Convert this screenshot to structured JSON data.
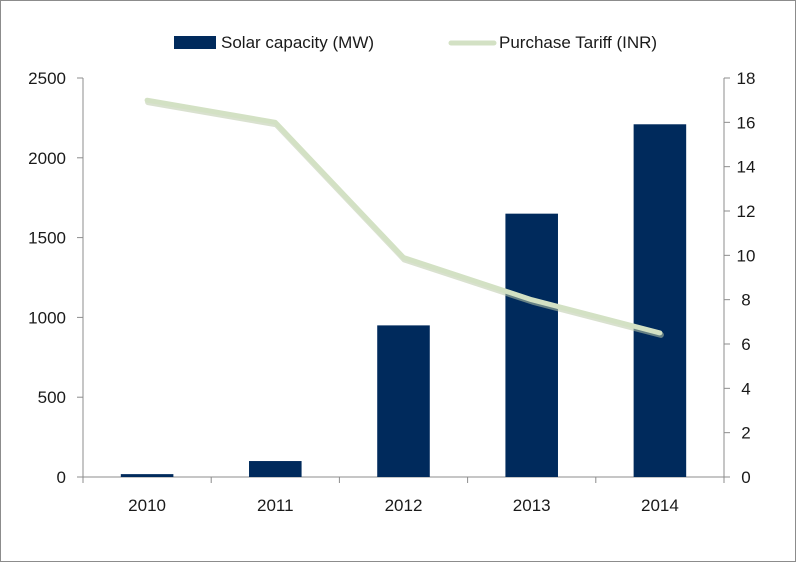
{
  "chart_data": {
    "type": "bar+line",
    "title": "",
    "categories": [
      "2010",
      "2011",
      "2012",
      "2013",
      "2014"
    ],
    "series": [
      {
        "name": "Solar capacity (MW)",
        "type": "bar",
        "axis": "left",
        "color": "#002a5c",
        "values": [
          18,
          100,
          950,
          1650,
          2210
        ]
      },
      {
        "name": "Purchase Tariff (INR)",
        "type": "line",
        "axis": "right",
        "color": "#d3e1c4",
        "values": [
          17.0,
          16.0,
          9.9,
          8.0,
          6.5
        ]
      }
    ],
    "y_left": {
      "min": 0,
      "max": 2500,
      "ticks": [
        "0",
        "500",
        "1000",
        "1500",
        "2000",
        "2500"
      ]
    },
    "y_right": {
      "min": 0,
      "max": 18,
      "ticks": [
        "0",
        "2",
        "4",
        "6",
        "8",
        "10",
        "12",
        "14",
        "16",
        "18"
      ]
    },
    "legend": {
      "position": "top",
      "items": [
        "Solar capacity (MW)",
        "Purchase Tariff (INR)"
      ]
    },
    "grid": false
  }
}
